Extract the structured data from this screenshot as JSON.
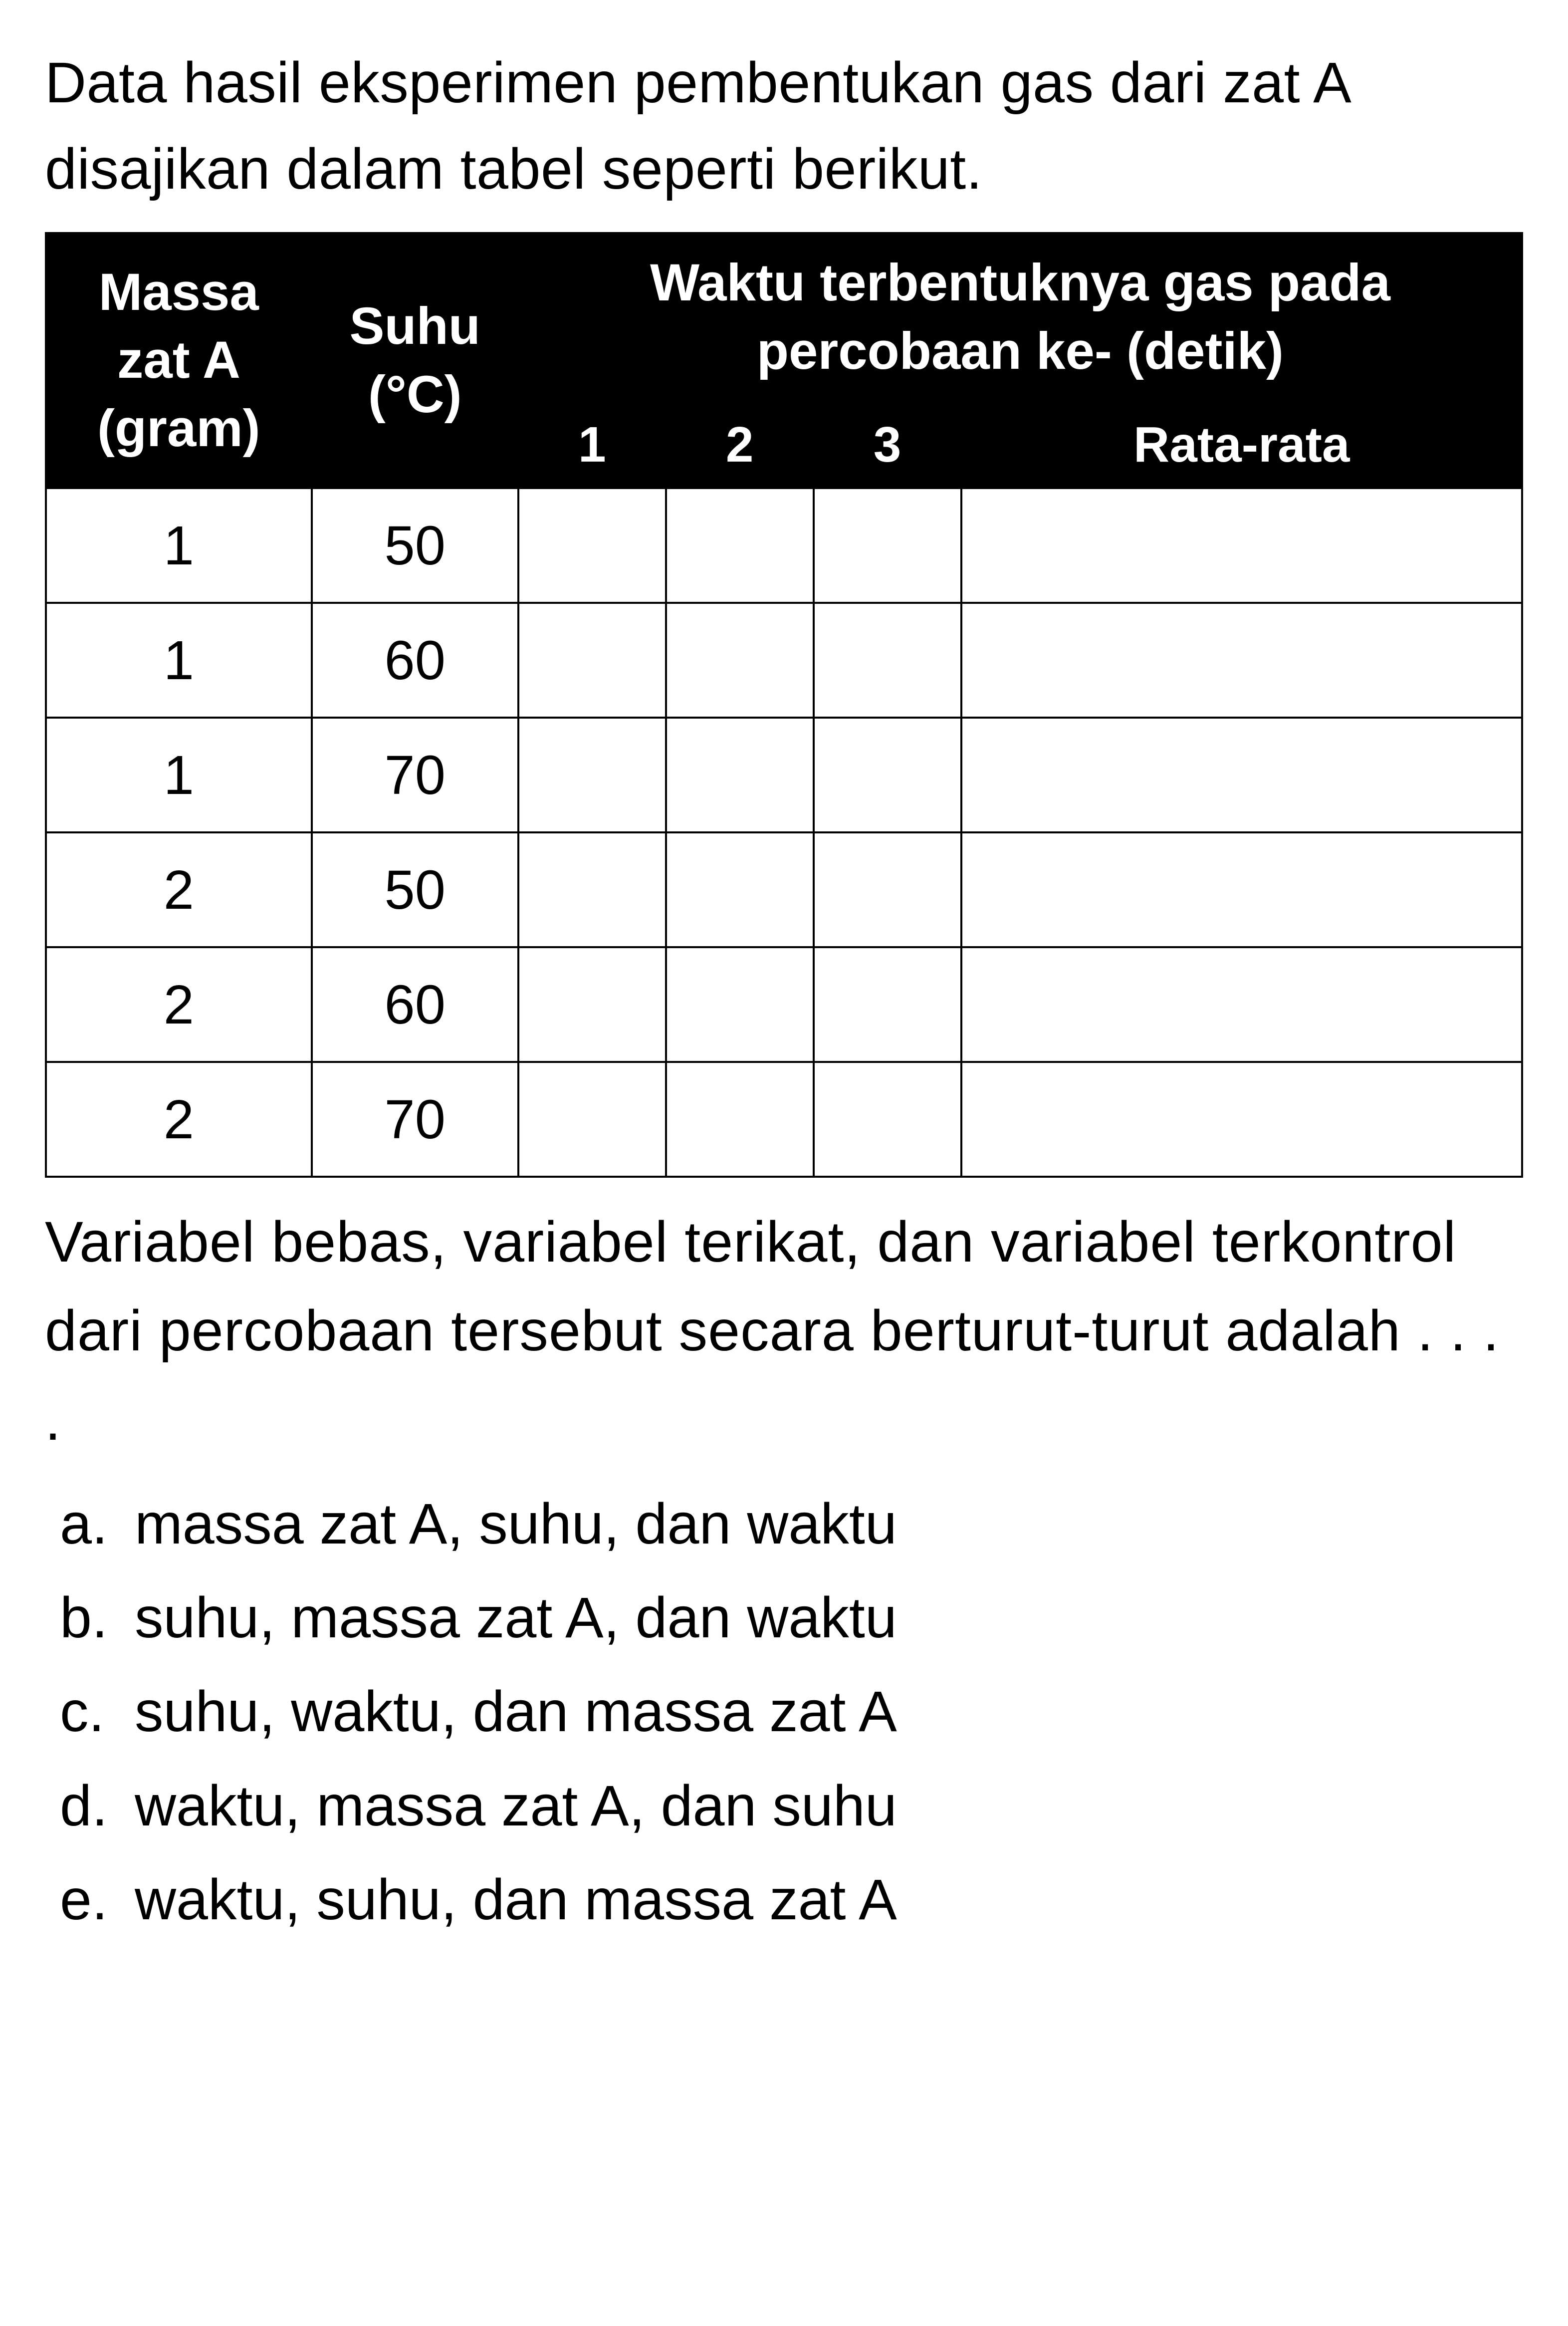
{
  "intro": "Data hasil eksperimen pembentukan gas dari zat A disajikan dalam tabel seperti berikut.",
  "table": {
    "headers": {
      "massa": "Massa zat A (gram)",
      "suhu": "Suhu (°C)",
      "waktu_main": "Waktu terbentuknya gas pada percobaan ke- (detik)",
      "col1": "1",
      "col2": "2",
      "col3": "3",
      "rata": "Rata-rata"
    },
    "rows": [
      {
        "massa": "1",
        "suhu": "50",
        "v1": "",
        "v2": "",
        "v3": "",
        "rata": ""
      },
      {
        "massa": "1",
        "suhu": "60",
        "v1": "",
        "v2": "",
        "v3": "",
        "rata": ""
      },
      {
        "massa": "1",
        "suhu": "70",
        "v1": "",
        "v2": "",
        "v3": "",
        "rata": ""
      },
      {
        "massa": "2",
        "suhu": "50",
        "v1": "",
        "v2": "",
        "v3": "",
        "rata": ""
      },
      {
        "massa": "2",
        "suhu": "60",
        "v1": "",
        "v2": "",
        "v3": "",
        "rata": ""
      },
      {
        "massa": "2",
        "suhu": "70",
        "v1": "",
        "v2": "",
        "v3": "",
        "rata": ""
      }
    ],
    "styling": {
      "header_bg": "#000000",
      "header_fg": "#ffffff",
      "cell_bg": "#ffffff",
      "cell_fg": "#000000",
      "border_color": "#000000",
      "border_width": 4,
      "header_fontsize": 105,
      "cell_fontsize": 110,
      "col_widths_percent": {
        "massa": 18,
        "suhu": 14,
        "c1": 10,
        "c2": 10,
        "c3": 10,
        "rata": 38
      }
    }
  },
  "question": "Variabel bebas, variabel terikat, dan variabel terkontrol dari percobaan tersebut secara berturut-turut adalah . . . .",
  "options": [
    {
      "letter": "a.",
      "text": "massa zat A, suhu, dan waktu"
    },
    {
      "letter": "b.",
      "text": "suhu, massa zat A, dan waktu"
    },
    {
      "letter": "c.",
      "text": "suhu, waktu, dan massa zat A"
    },
    {
      "letter": "d.",
      "text": "waktu, massa zat A, dan suhu"
    },
    {
      "letter": "e.",
      "text": "waktu, suhu, dan massa zat A"
    }
  ],
  "typography": {
    "body_fontsize": 115,
    "font_family": "Arial",
    "text_color": "#000000",
    "background_color": "#ffffff"
  }
}
